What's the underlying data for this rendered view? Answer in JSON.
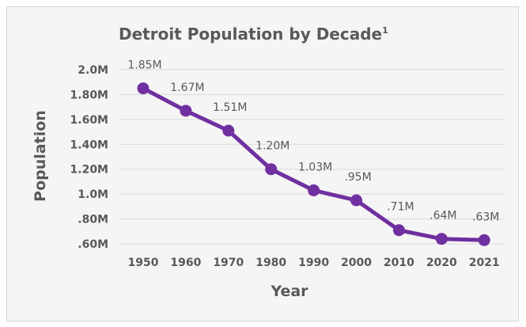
{
  "chart_data": {
    "type": "line",
    "title": "Detroit Population by Decade",
    "title_superscript": "1",
    "xlabel": "Year",
    "ylabel": "Population",
    "categories": [
      "1950",
      "1960",
      "1970",
      "1980",
      "1990",
      "2000",
      "2010",
      "2020",
      "2021"
    ],
    "series": [
      {
        "values": [
          1.85,
          1.67,
          1.51,
          1.2,
          1.03,
          0.95,
          0.71,
          0.64,
          0.63
        ],
        "labels": [
          "1.85M",
          "1.67M",
          "1.51M",
          "1.20M",
          "1.03M",
          ".95M",
          ".71M",
          ".64M",
          ".63M"
        ],
        "color": "#7030a0"
      }
    ],
    "yticks": [
      {
        "value": 2.0,
        "label": "2.0M"
      },
      {
        "value": 1.8,
        "label": "1.80M"
      },
      {
        "value": 1.6,
        "label": "1.60M"
      },
      {
        "value": 1.4,
        "label": "1.40M"
      },
      {
        "value": 1.2,
        "label": "1.20M"
      },
      {
        "value": 1.0,
        "label": "1.0M"
      },
      {
        "value": 0.8,
        "label": ".80M"
      },
      {
        "value": 0.6,
        "label": ".60M"
      }
    ],
    "ylim": [
      0.6,
      2.0
    ],
    "grid": true,
    "legend": "none",
    "colors": {
      "line": "#7030a0",
      "grid": "#d9d9d9",
      "text": "#595959",
      "background": "#f5f5f5"
    }
  }
}
